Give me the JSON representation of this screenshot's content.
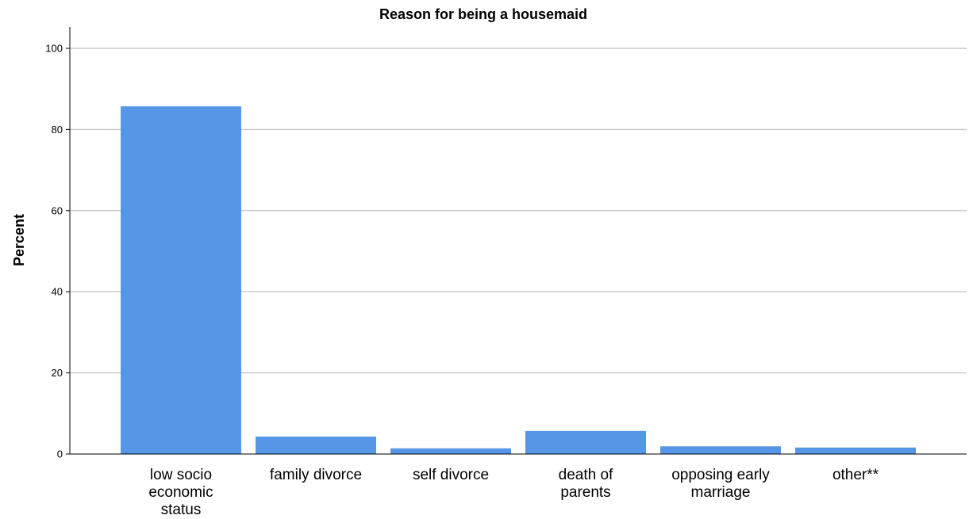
{
  "chart_data": {
    "type": "bar",
    "title": "Reason for being a housemaid",
    "xlabel": "",
    "ylabel": "Percent",
    "categories": [
      "low socio economic status",
      "family divorce",
      "self divorce",
      "death of parents",
      "opposing early marriage",
      "other**"
    ],
    "category_lines": [
      [
        "low socio",
        "economic",
        "status"
      ],
      [
        "family divorce"
      ],
      [
        "self divorce"
      ],
      [
        "death of",
        "parents"
      ],
      [
        "opposing early",
        "marriage"
      ],
      [
        "other**"
      ]
    ],
    "values": [
      85.7,
      4.3,
      1.4,
      5.7,
      1.9,
      1.6
    ],
    "ylim": [
      0,
      100
    ],
    "yticks": [
      0,
      20,
      40,
      60,
      80,
      100
    ],
    "grid": true,
    "bar_color": "#5596e6"
  }
}
